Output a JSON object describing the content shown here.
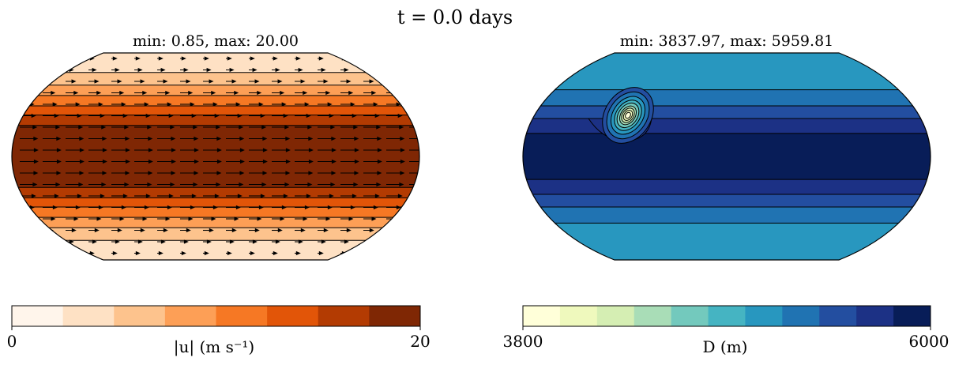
{
  "figure": {
    "title": "t = 0.0 days"
  },
  "chart_data": [
    {
      "type": "heatmap",
      "projection": "robinson",
      "title": "min: 0.85, max: 20.00",
      "variable": "|u| (m s⁻¹)",
      "colorbar": {
        "label": "|u| (m s⁻¹)",
        "min": 0,
        "max": 20,
        "ticks": [
          "0",
          "20"
        ],
        "levels": [
          0,
          2.5,
          5,
          7.5,
          10,
          12.5,
          15,
          17.5,
          20
        ],
        "colors": [
          "#fff5eb",
          "#fee1c4",
          "#fdc38d",
          "#fd9f56",
          "#f67824",
          "#e25508",
          "#b33b02",
          "#7f2704"
        ]
      },
      "field": {
        "description": "zonal jet, speed increasing toward equator",
        "bands_north_to_south": [
          {
            "lat_top": 90,
            "lat_bottom": 73,
            "bin": 1
          },
          {
            "lat_top": 73,
            "lat_bottom": 62,
            "bin": 2
          },
          {
            "lat_top": 62,
            "lat_bottom": 53,
            "bin": 3
          },
          {
            "lat_top": 53,
            "lat_bottom": 44,
            "bin": 4
          },
          {
            "lat_top": 44,
            "lat_bottom": 36,
            "bin": 5
          },
          {
            "lat_top": 36,
            "lat_bottom": 27,
            "bin": 6
          },
          {
            "lat_top": 27,
            "lat_bottom": -27,
            "bin": 7
          },
          {
            "lat_top": -27,
            "lat_bottom": -36,
            "bin": 6
          },
          {
            "lat_top": -36,
            "lat_bottom": -44,
            "bin": 5
          },
          {
            "lat_top": -44,
            "lat_bottom": -53,
            "bin": 4
          },
          {
            "lat_top": -53,
            "lat_bottom": -62,
            "bin": 3
          },
          {
            "lat_top": -62,
            "lat_bottom": -73,
            "bin": 2
          },
          {
            "lat_top": -73,
            "lat_bottom": -90,
            "bin": 1
          }
        ],
        "vector_overlay": "eastward wind arrows",
        "min": 0.85,
        "max": 20.0
      }
    },
    {
      "type": "heatmap",
      "projection": "robinson",
      "title": "min: 3837.97, max: 5959.81",
      "variable": "D (m)",
      "colorbar": {
        "label": "D (m)",
        "min": 3800,
        "max": 6000,
        "ticks": [
          "3800",
          "6000"
        ],
        "levels": [
          3800,
          4000,
          4200,
          4400,
          4600,
          4800,
          5000,
          5200,
          5400,
          5600,
          5800,
          6000
        ],
        "colors": [
          "#ffffd9",
          "#eff9bd",
          "#d5eeb3",
          "#a9ddb7",
          "#73c9bd",
          "#45b4c2",
          "#2897bf",
          "#2073b2",
          "#234ea0",
          "#1c3185",
          "#081d58"
        ]
      },
      "field": {
        "description": "depth field deepest at equator with a local perturbation in the northern hemisphere",
        "bands_north_to_south": [
          {
            "lat_top": 90,
            "lat_bottom": 58,
            "bin": 6
          },
          {
            "lat_top": 58,
            "lat_bottom": 44,
            "bin": 7
          },
          {
            "lat_top": 44,
            "lat_bottom": 33,
            "bin": 8
          },
          {
            "lat_top": 33,
            "lat_bottom": 20,
            "bin": 9
          },
          {
            "lat_top": 20,
            "lat_bottom": -20,
            "bin": 10
          },
          {
            "lat_top": -20,
            "lat_bottom": -33,
            "bin": 9
          },
          {
            "lat_top": -33,
            "lat_bottom": -44,
            "bin": 8
          },
          {
            "lat_top": -44,
            "lat_bottom": -58,
            "bin": 7
          },
          {
            "lat_top": -58,
            "lat_bottom": -90,
            "bin": 6
          }
        ],
        "perturbation": {
          "lon": -90,
          "lat": 40,
          "min_value": 3837.97
        },
        "min": 3837.97,
        "max": 5959.81
      }
    }
  ]
}
